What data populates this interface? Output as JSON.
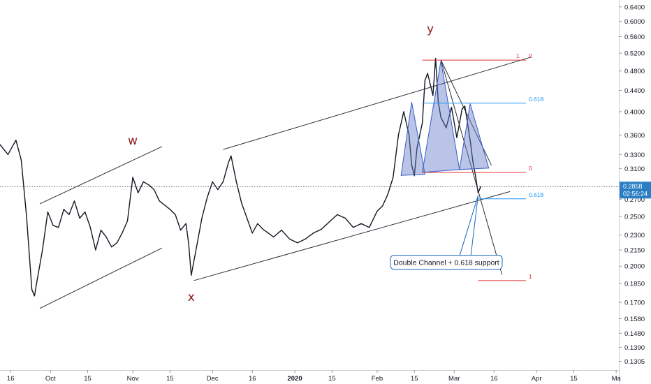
{
  "chart_data": {
    "type": "line",
    "title": "",
    "xlabel": "",
    "ylabel": "",
    "y_scale": "log",
    "ylim": [
      0.1255,
      0.66
    ],
    "y_ticks": [
      "0.6400",
      "0.6000",
      "0.5600",
      "0.5200",
      "0.4800",
      "0.4400",
      "0.4000",
      "0.3600",
      "0.3300",
      "0.3100",
      "0.2858",
      "0.2700",
      "0.2500",
      "0.2300",
      "0.2150",
      "0.2000",
      "0.1850",
      "0.1700",
      "0.1580",
      "0.1480",
      "0.1390",
      "0.1305"
    ],
    "x_ticks": [
      "16",
      "Oct",
      "15",
      "Nov",
      "15",
      "Dec",
      "16",
      "2020",
      "15",
      "Feb",
      "15",
      "Mar",
      "16",
      "Apr",
      "15",
      "Ma"
    ],
    "x_tick_dates": [
      "2019-09-16",
      "2019-10-01",
      "2019-10-15",
      "2019-11-01",
      "2019-11-15",
      "2019-12-01",
      "2019-12-16",
      "2020-01-01",
      "2020-01-15",
      "2020-02-01",
      "2020-02-15",
      "2020-03-01",
      "2020-03-16",
      "2020-04-01",
      "2020-04-15",
      "2020-05-01"
    ],
    "xlim": [
      "2019-09-12",
      "2020-05-02"
    ],
    "series": [
      {
        "color": "#131722",
        "x": [
          "2019-09-12",
          "2019-09-15",
          "2019-09-18",
          "2019-09-20",
          "2019-09-22",
          "2019-09-24",
          "2019-09-25",
          "2019-09-26",
          "2019-09-28",
          "2019-09-30",
          "2019-10-02",
          "2019-10-04",
          "2019-10-06",
          "2019-10-08",
          "2019-10-10",
          "2019-10-12",
          "2019-10-14",
          "2019-10-16",
          "2019-10-18",
          "2019-10-20",
          "2019-10-22",
          "2019-10-24",
          "2019-10-26",
          "2019-10-28",
          "2019-10-30",
          "2019-11-01",
          "2019-11-03",
          "2019-11-05",
          "2019-11-07",
          "2019-11-09",
          "2019-11-11",
          "2019-11-13",
          "2019-11-15",
          "2019-11-17",
          "2019-11-19",
          "2019-11-21",
          "2019-11-22",
          "2019-11-23",
          "2019-11-25",
          "2019-11-27",
          "2019-11-29",
          "2019-12-01",
          "2019-12-03",
          "2019-12-05",
          "2019-12-07",
          "2019-12-08",
          "2019-12-10",
          "2019-12-12",
          "2019-12-14",
          "2019-12-16",
          "2019-12-18",
          "2019-12-20",
          "2019-12-22",
          "2019-12-24",
          "2019-12-27",
          "2019-12-30",
          "2020-01-02",
          "2020-01-05",
          "2020-01-08",
          "2020-01-11",
          "2020-01-14",
          "2020-01-17",
          "2020-01-20",
          "2020-01-23",
          "2020-01-26",
          "2020-01-29",
          "2020-02-01",
          "2020-02-03",
          "2020-02-05",
          "2020-02-07",
          "2020-02-09",
          "2020-02-11",
          "2020-02-13",
          "2020-02-14",
          "2020-02-15",
          "2020-02-16",
          "2020-02-18",
          "2020-02-19",
          "2020-02-20",
          "2020-02-22",
          "2020-02-23",
          "2020-02-24",
          "2020-02-25",
          "2020-02-27",
          "2020-02-29",
          "2020-03-02",
          "2020-03-04",
          "2020-03-05",
          "2020-03-06",
          "2020-03-07",
          "2020-03-08",
          "2020-03-09",
          "2020-03-10",
          "2020-03-11"
        ],
        "y": [
          0.345,
          0.33,
          0.352,
          0.322,
          0.25,
          0.18,
          0.175,
          0.188,
          0.215,
          0.255,
          0.24,
          0.238,
          0.258,
          0.252,
          0.268,
          0.248,
          0.255,
          0.238,
          0.215,
          0.235,
          0.228,
          0.218,
          0.222,
          0.232,
          0.245,
          0.298,
          0.278,
          0.292,
          0.288,
          0.282,
          0.268,
          0.263,
          0.258,
          0.252,
          0.235,
          0.242,
          0.222,
          0.192,
          0.218,
          0.248,
          0.272,
          0.292,
          0.282,
          0.292,
          0.318,
          0.328,
          0.292,
          0.265,
          0.248,
          0.232,
          0.242,
          0.236,
          0.232,
          0.228,
          0.235,
          0.226,
          0.222,
          0.226,
          0.232,
          0.236,
          0.244,
          0.252,
          0.248,
          0.238,
          0.242,
          0.238,
          0.256,
          0.262,
          0.276,
          0.298,
          0.36,
          0.4,
          0.36,
          0.315,
          0.3,
          0.34,
          0.38,
          0.46,
          0.475,
          0.43,
          0.508,
          0.418,
          0.39,
          0.372,
          0.408,
          0.356,
          0.405,
          0.41,
          0.38,
          0.352,
          0.32,
          0.3,
          0.278,
          0.2858
        ]
      }
    ],
    "annotations": {
      "wave_labels": [
        {
          "text": "w",
          "x": "2019-11-01",
          "y": 0.345
        },
        {
          "text": "x",
          "x": "2019-11-23",
          "y": 0.171
        },
        {
          "text": "y",
          "x": "2020-02-21",
          "y": 0.57
        }
      ],
      "callout": {
        "text": "Double Channel + 0.618 support",
        "x": "2020-02-06",
        "y": 0.2035,
        "target": {
          "x": "2020-03-10",
          "y": 0.2745
        }
      },
      "fib_levels": [
        {
          "label": "1",
          "price": 0.504,
          "color": "#e03030",
          "x0": "2020-02-18",
          "x1": "2020-03-28"
        },
        {
          "label": "0",
          "price": 0.504,
          "color": "#e03030",
          "x0": "2020-02-18",
          "x1": "2020-03-28"
        },
        {
          "label": "0.618",
          "price": 0.4155,
          "color": "#2196f3",
          "x0": "2020-02-18",
          "x1": "2020-03-28"
        },
        {
          "label": "0",
          "price": 0.3045,
          "color": "#e03030",
          "x0": "2020-02-18",
          "x1": "2020-03-28"
        },
        {
          "label": "0.618",
          "price": 0.2705,
          "color": "#2196f3",
          "x0": "2020-03-10",
          "x1": "2020-03-28"
        },
        {
          "label": "1",
          "price": 0.1875,
          "color": "#e03030",
          "x0": "2020-03-10",
          "x1": "2020-03-28"
        }
      ],
      "trendlines": [
        {
          "x0": "2019-09-27",
          "y0": 0.1655,
          "x1": "2019-11-12",
          "y1": 0.217
        },
        {
          "x0": "2019-09-27",
          "y0": 0.2645,
          "x1": "2019-11-12",
          "y1": 0.342
        },
        {
          "x0": "2019-11-24",
          "y0": 0.1875,
          "x1": "2020-03-22",
          "y1": 0.2795
        },
        {
          "x0": "2019-12-05",
          "y0": 0.3375,
          "x1": "2020-03-30",
          "y1": 0.511
        },
        {
          "x0": "2020-02-25",
          "y0": 0.5045,
          "x1": "2020-03-19",
          "y1": 0.1925
        },
        {
          "x0": "2020-02-25",
          "y0": 0.5045,
          "x1": "2020-03-15",
          "y1": 0.3145
        }
      ],
      "triangles": [
        [
          [
            "2020-02-10",
            "0.3005"
          ],
          [
            "2020-02-14",
            "0.4175"
          ],
          [
            "2020-02-19",
            "0.302"
          ]
        ],
        [
          [
            "2020-02-18",
            "0.3045"
          ],
          [
            "2020-02-25",
            "0.5025"
          ],
          [
            "2020-03-03",
            "0.3085"
          ]
        ],
        [
          [
            "2020-03-03",
            "0.3085"
          ],
          [
            "2020-03-07",
            "0.4145"
          ],
          [
            "2020-03-14",
            "0.3105"
          ]
        ]
      ]
    },
    "last_price": {
      "value": "0.2858",
      "countdown": "02:56:24",
      "color": "#2a7fc4"
    }
  }
}
